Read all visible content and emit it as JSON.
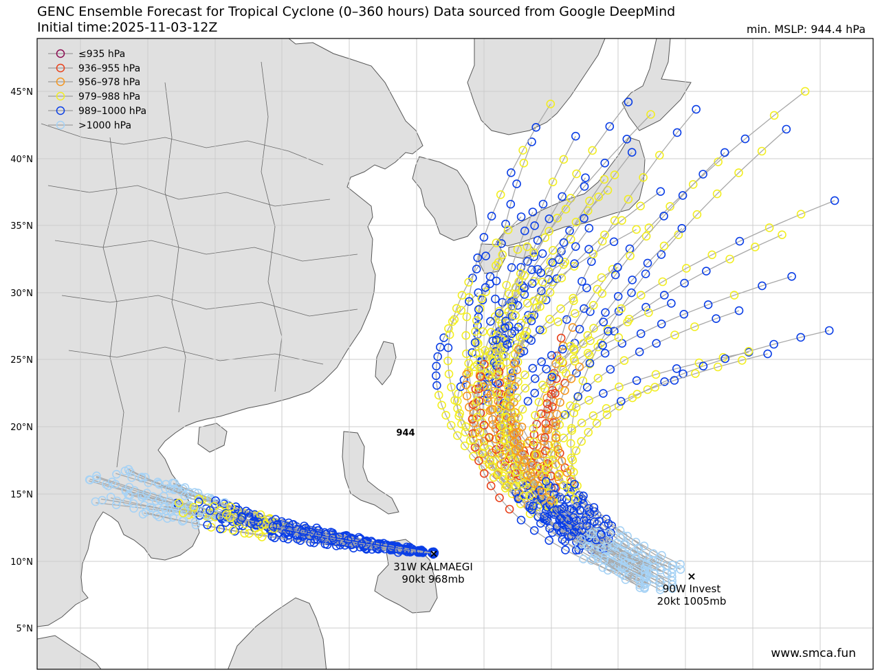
{
  "title_line1": "GENC Ensemble Forecast for Tropical Cyclone (0–360 hours) Data sourced from Google DeepMind",
  "title_line2": "Initial time:2025-11-03-12Z",
  "min_mslp": "min. MSLP: 944.4 hPa",
  "credit": "www.smca.fun",
  "min_marker_label": "944",
  "latitude_labels": [
    "45°N",
    "40°N",
    "35°N",
    "30°N",
    "25°N",
    "20°N",
    "15°N",
    "10°N",
    "5°N"
  ],
  "legend": [
    {
      "label": "≤935 hPa",
      "color": "#8b0a50"
    },
    {
      "label": "936–955 hPa",
      "color": "#e8401a"
    },
    {
      "label": "956–978 hPa",
      "color": "#f5961e"
    },
    {
      "label": "979–988 hPa",
      "color": "#f2ee22"
    },
    {
      "label": "989–1000 hPa",
      "color": "#0a3ee6"
    },
    {
      "label": ">1000 hPa",
      "color": "#a6d2f5"
    }
  ],
  "storms": [
    {
      "name": "31W KALMAEGI",
      "detail": "90kt 968mb"
    },
    {
      "name": "90W Invest",
      "detail": "20kt 1005mb"
    }
  ],
  "colors": {
    "land": "#e0e0e0",
    "border": "#555555",
    "grid": "#cccccc",
    "track": "#a8a8a8"
  }
}
